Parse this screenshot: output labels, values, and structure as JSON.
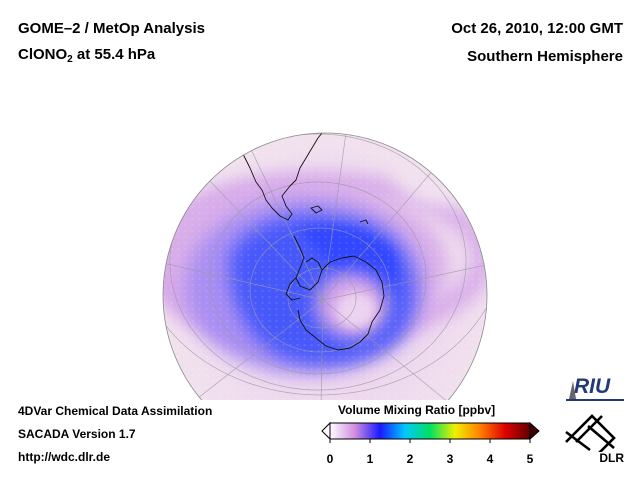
{
  "header": {
    "title_line1": "GOME–2 / MetOp Analysis",
    "title_species": "ClONO",
    "title_subscript": "2",
    "title_level": " at 55.4 hPa",
    "date": "Oct 26, 2010, 12:00 GMT",
    "region": "Southern Hemisphere"
  },
  "footer": {
    "line1": "4DVar Chemical Data Assimilation",
    "line2": "SACADA Version 1.7",
    "line3": "http://wdc.dlr.de"
  },
  "colorbar": {
    "title": "Volume Mixing Ratio [ppbv]",
    "ticks": [
      "0",
      "1",
      "2",
      "3",
      "4",
      "5"
    ],
    "range": [
      0,
      5
    ],
    "colors": [
      "#ffffff",
      "#d08ce0",
      "#1a1aff",
      "#00c8ff",
      "#00e060",
      "#f0f000",
      "#ff8000",
      "#e00000",
      "#600000"
    ]
  },
  "logos": {
    "riu": "RIU",
    "dlr": "DLR"
  },
  "map": {
    "projection": "orthographic",
    "center": "South Pole",
    "field": "ClONO2 volume mixing ratio",
    "colors": {
      "low": "#f3e6ee",
      "mid": "#c79ae4",
      "high": "#3a50ff"
    }
  }
}
